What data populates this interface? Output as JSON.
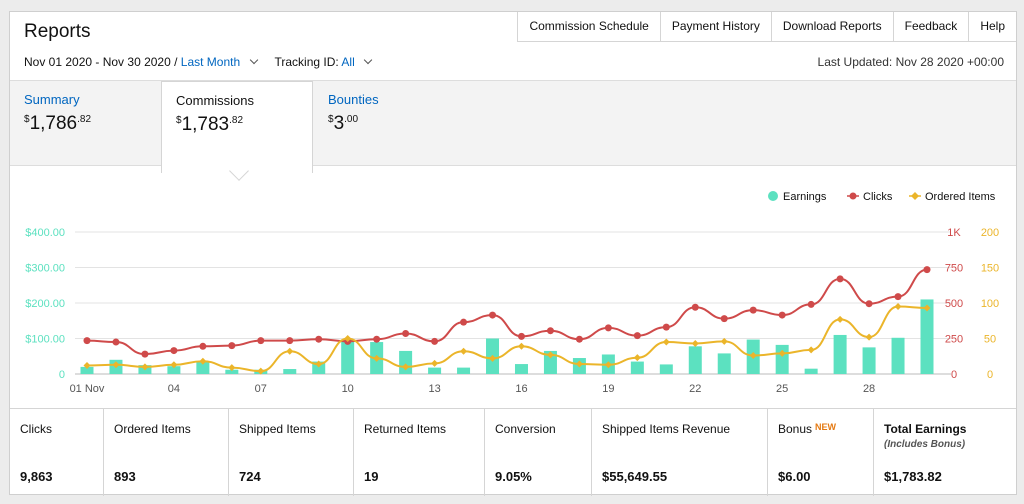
{
  "header": {
    "title": "Reports",
    "nav": [
      "Commission Schedule",
      "Payment History",
      "Download Reports",
      "Feedback",
      "Help"
    ]
  },
  "filters": {
    "date_range": "Nov 01 2020 - Nov 30 2020 /",
    "period": "Last Month",
    "tracking_label": "Tracking ID:",
    "tracking_value": "All",
    "last_updated": "Last Updated: Nov 28 2020 +00:00"
  },
  "summary": [
    {
      "label": "Summary",
      "currency": "$",
      "whole": "1,786",
      "cents": ".82"
    },
    {
      "label": "Commissions",
      "currency": "$",
      "whole": "1,783",
      "cents": ".82"
    },
    {
      "label": "Bounties",
      "currency": "$",
      "whole": "3",
      "cents": ".00"
    }
  ],
  "legend": {
    "earnings": "Earnings",
    "clicks": "Clicks",
    "ordered": "Ordered Items"
  },
  "colors": {
    "earnings": "#5ce1c0",
    "clicks": "#cf4a4a",
    "ordered": "#ebb52a",
    "link": "#0066c0",
    "new_badge": "#e47911"
  },
  "chart_data": {
    "type": "bar",
    "x": [
      "01 Nov",
      "02",
      "03",
      "04",
      "05",
      "06",
      "07",
      "08",
      "09",
      "10",
      "11",
      "12",
      "13",
      "14",
      "15",
      "16",
      "17",
      "18",
      "19",
      "20",
      "21",
      "22",
      "23",
      "24",
      "25",
      "26",
      "27",
      "28",
      "29",
      "30"
    ],
    "x_tick_labels": [
      "01 Nov",
      "04",
      "07",
      "10",
      "13",
      "16",
      "19",
      "22",
      "25",
      "28"
    ],
    "y_left": {
      "ticks": [
        "0",
        "$100.00",
        "$200.00",
        "$300.00",
        "$400.00"
      ],
      "ylim": [
        0,
        400
      ]
    },
    "y_clicks": {
      "ticks": [
        "0",
        "250",
        "500",
        "750",
        "1K"
      ],
      "ylim": [
        0,
        1000
      ]
    },
    "y_ordered": {
      "ticks": [
        "0",
        "50",
        "100",
        "150",
        "200"
      ],
      "ylim": [
        0,
        200
      ]
    },
    "series": [
      {
        "name": "Earnings",
        "axis": "left",
        "type": "bar",
        "values": [
          20,
          40,
          25,
          22,
          35,
          12,
          12,
          14,
          35,
          97,
          90,
          65,
          18,
          18,
          100,
          28,
          65,
          45,
          55,
          35,
          27,
          78,
          58,
          97,
          82,
          15,
          110,
          75,
          102,
          210
        ]
      },
      {
        "name": "Clicks",
        "axis": "clicks",
        "type": "line",
        "values": [
          235,
          225,
          140,
          165,
          195,
          200,
          235,
          235,
          245,
          230,
          245,
          285,
          230,
          365,
          415,
          265,
          305,
          245,
          325,
          270,
          330,
          470,
          390,
          450,
          415,
          490,
          670,
          495,
          545,
          735
        ]
      },
      {
        "name": "Ordered Items",
        "axis": "ordered",
        "type": "line",
        "values": [
          12,
          13,
          10,
          13,
          18,
          9,
          4,
          32,
          14,
          50,
          22,
          10,
          15,
          32,
          22,
          39,
          27,
          14,
          13,
          23,
          45,
          43,
          46,
          26,
          29,
          34,
          77,
          52,
          95,
          93
        ]
      }
    ]
  },
  "stats": [
    {
      "label": "Clicks",
      "value": "9,863"
    },
    {
      "label": "Ordered Items",
      "value": "893"
    },
    {
      "label": "Shipped Items",
      "value": "724"
    },
    {
      "label": "Returned Items",
      "value": "19"
    },
    {
      "label": "Conversion",
      "value": "9.05%"
    },
    {
      "label": "Shipped Items Revenue",
      "value": "$55,649.55"
    },
    {
      "label": "Bonus",
      "badge": "NEW",
      "value": "$6.00"
    },
    {
      "label": "Total Earnings",
      "sub": "(Includes Bonus)",
      "value": "$1,783.82"
    }
  ]
}
